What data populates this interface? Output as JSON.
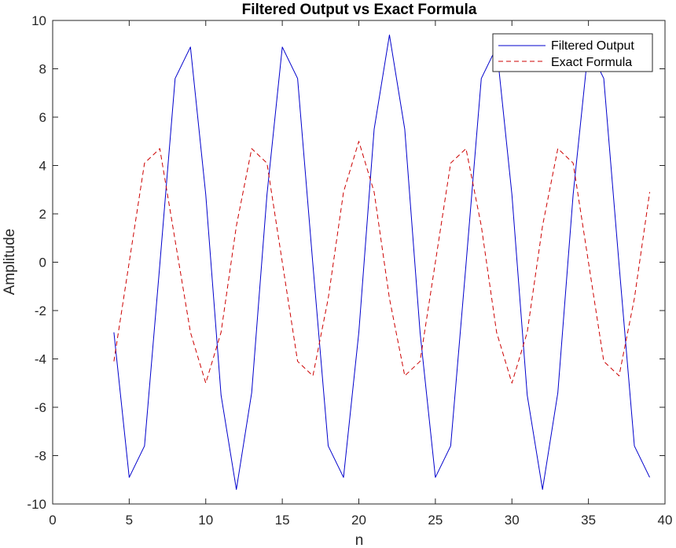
{
  "chart_data": {
    "type": "line",
    "title": "Filtered Output vs Exact Formula",
    "xlabel": "n",
    "ylabel": "Amplitude",
    "xlim": [
      0,
      40
    ],
    "ylim": [
      -10,
      10
    ],
    "xticks": [
      0,
      5,
      10,
      15,
      20,
      25,
      30,
      35,
      40
    ],
    "yticks": [
      -10,
      -8,
      -6,
      -4,
      -2,
      0,
      2,
      4,
      6,
      8,
      10
    ],
    "grid": false,
    "legend_position": "top-right",
    "x": [
      4,
      5,
      6,
      7,
      8,
      9,
      10,
      11,
      12,
      13,
      14,
      15,
      16,
      17,
      18,
      19,
      20,
      21,
      22,
      23,
      24,
      25,
      26,
      27,
      28,
      29,
      30,
      31,
      32,
      33,
      34,
      35,
      36,
      37,
      38,
      39
    ],
    "series": [
      {
        "name": "Filtered Output",
        "color": "#0000cc",
        "style": "solid",
        "values": [
          -2.9,
          -8.9,
          -7.6,
          -0.1,
          7.6,
          8.9,
          2.8,
          -5.5,
          -9.4,
          -5.4,
          2.8,
          8.9,
          7.6,
          -0.1,
          -7.6,
          -8.9,
          -2.9,
          5.5,
          9.4,
          5.5,
          -2.9,
          -8.9,
          -7.6,
          -0.1,
          7.6,
          8.9,
          2.8,
          -5.5,
          -9.4,
          -5.4,
          2.8,
          8.9,
          7.6,
          -0.1,
          -7.6,
          -8.9
        ]
      },
      {
        "name": "Exact Formula",
        "color": "#cc0000",
        "style": "dashed",
        "values": [
          -4.1,
          0.0,
          4.1,
          4.7,
          0.9,
          -2.9,
          -5.0,
          -2.9,
          1.5,
          4.7,
          4.1,
          0.0,
          -4.1,
          -4.7,
          -1.5,
          2.9,
          5.0,
          2.9,
          -1.5,
          -4.7,
          -4.1,
          0.0,
          4.1,
          4.7,
          1.5,
          -2.9,
          -5.0,
          -2.9,
          1.5,
          4.7,
          4.1,
          0.0,
          -4.1,
          -4.7,
          -1.5,
          2.9
        ]
      }
    ]
  }
}
